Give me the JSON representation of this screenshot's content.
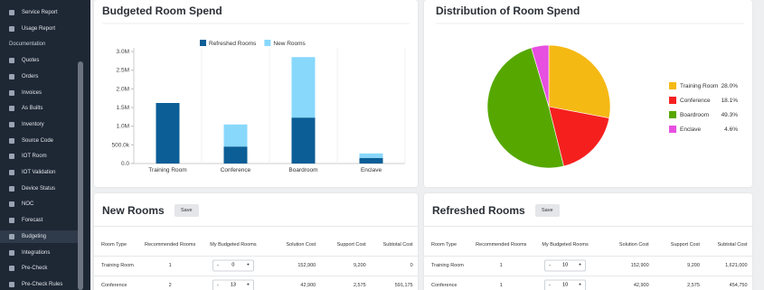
{
  "sidebar": {
    "items_top": [
      "Service Report",
      "Usage Report"
    ],
    "section": "Documentation",
    "items": [
      "Quotes",
      "Orders",
      "Invoices",
      "As Builts",
      "Inventory",
      "Source Code",
      "IOT Room",
      "IOT Validation",
      "Device Status",
      "NOC",
      "Forecast",
      "Budgeting",
      "Integrations",
      "Pre-Check",
      "Pre-Check Rules"
    ]
  },
  "chart_data": [
    {
      "type": "bar",
      "title": "Budgeted Room Spend",
      "categories": [
        "Training Room",
        "Conference",
        "Boardroom",
        "Enclave"
      ],
      "series": [
        {
          "name": "Refreshed Rooms",
          "color": "#0b5e96",
          "values": [
            1621000,
            454750,
            1230000,
            150000
          ]
        },
        {
          "name": "New Rooms",
          "color": "#88d8fc",
          "values": [
            0,
            591175,
            1620000,
            120000
          ]
        }
      ],
      "stacked": true,
      "ylim": [
        0,
        3000000
      ],
      "yticks": [
        {
          "value": 0,
          "label": "0.0"
        },
        {
          "value": 500000,
          "label": "500.0k"
        },
        {
          "value": 1000000,
          "label": "1.0M"
        },
        {
          "value": 1500000,
          "label": "1.5M"
        },
        {
          "value": 2000000,
          "label": "2.0M"
        },
        {
          "value": 2500000,
          "label": "2.5M"
        },
        {
          "value": 3000000,
          "label": "3.0M"
        }
      ],
      "legend": "top"
    },
    {
      "type": "pie",
      "title": "Distribution of Room Spend",
      "categories": [
        "Training Room",
        "Conference",
        "Boardroom",
        "Enclave"
      ],
      "values": [
        28.0,
        18.1,
        49.3,
        4.6
      ],
      "value_labels": [
        "28.0%",
        "18.1%",
        "49.3%",
        "4.6%"
      ],
      "colors": [
        "#f5b914",
        "#f5201e",
        "#56a800",
        "#e64fe0"
      ],
      "legend": "right"
    }
  ],
  "stepper": {
    "decrement": "-",
    "increment": "+"
  },
  "tables": [
    {
      "title": "New Rooms",
      "button": "Save",
      "columns": [
        "Room Type",
        "Recommended Rooms",
        "My Budgeted Rooms",
        "Solution Cost",
        "Support Cost",
        "Subtotal Cost"
      ],
      "rows": [
        [
          "Training Room",
          "1",
          "0",
          "152,900",
          "9,200",
          "0"
        ],
        [
          "Conference",
          "2",
          "13",
          "42,900",
          "2,575",
          "591,175"
        ]
      ]
    },
    {
      "title": "Refreshed Rooms",
      "button": "Save",
      "columns": [
        "Room Type",
        "Recommended Rooms",
        "My Budgeted Rooms",
        "Solution Cost",
        "Support Cost",
        "Subtotal Cost"
      ],
      "rows": [
        [
          "Training Room",
          "1",
          "10",
          "152,900",
          "9,200",
          "1,621,000"
        ],
        [
          "Conference",
          "1",
          "10",
          "42,900",
          "2,575",
          "454,750"
        ]
      ]
    }
  ]
}
